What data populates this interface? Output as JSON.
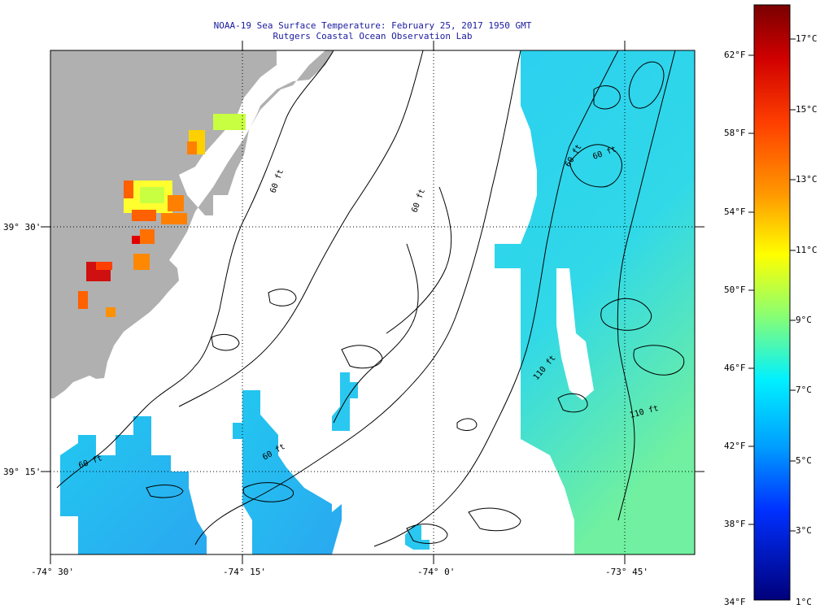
{
  "header": {
    "line1": "NOAA-19 Sea Surface Temperature:  February 25, 2017 1950 GMT",
    "line2": "Rutgers Coastal Ocean Observation Lab"
  },
  "map": {
    "x_labels": [
      "-74° 30'",
      "-74° 15'",
      "-74° 0'",
      "-73° 45'"
    ],
    "y_labels": [
      "39° 30'",
      "39° 15'"
    ],
    "contour_labels": [
      "60 ft",
      "110 ft",
      "60 ft",
      "110 ft",
      "60 ft",
      "60 ft",
      "60 ft",
      "60 ft"
    ],
    "land_color": "#b0b0b0",
    "cloud_color": "#ffffff"
  },
  "colorbar": {
    "fahrenheit": [
      "62°F",
      "58°F",
      "54°F",
      "50°F",
      "46°F",
      "42°F",
      "38°F",
      "34°F"
    ],
    "celsius": [
      "17°C",
      "15°C",
      "13°C",
      "11°C",
      "9°C",
      "7°C",
      "5°C",
      "3°C",
      "1°C"
    ],
    "colors": [
      "#800000",
      "#ff0000",
      "#ff8000",
      "#ffff00",
      "#80ff80",
      "#00ffff",
      "#0080ff",
      "#0000ff",
      "#000080"
    ]
  }
}
